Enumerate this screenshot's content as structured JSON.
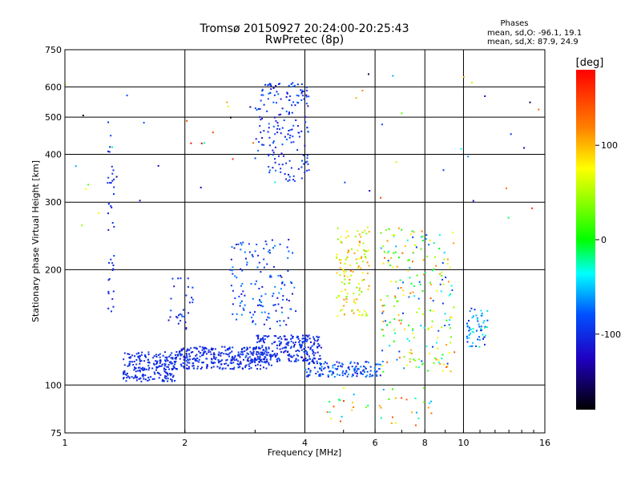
{
  "chart_data": {
    "type": "scatter",
    "title": "Tromsø 20150927 20:24:00-20:25:43",
    "subtitle": "RwPretec (8p)",
    "xlabel": "Frequency [MHz]",
    "ylabel": "Stationary phase Virtual Height [km]",
    "x_scale": "log",
    "y_scale": "log",
    "xlim": [
      1,
      16
    ],
    "ylim": [
      75,
      750
    ],
    "x_ticks": [
      "1",
      "2",
      "4",
      "6",
      "8",
      "10",
      "16"
    ],
    "y_ticks": [
      "75",
      "100",
      "200",
      "300",
      "400",
      "500",
      "600",
      "750"
    ],
    "grid": true,
    "phases": {
      "title": "Phases",
      "line_o": "mean, sd,O: -96.1, 19.1",
      "line_x": "mean, sd,X:  87.9, 24.9"
    },
    "colorbar": {
      "label": "[deg]",
      "ticks": [
        "100",
        "0",
        "-100"
      ],
      "tick_values": [
        100,
        0,
        -100
      ],
      "range": [
        -180,
        180
      ]
    },
    "clusters": [
      {
        "x": [
          1.4,
          1.9
        ],
        "y": [
          102,
          122
        ],
        "phase": [
          -110,
          -90
        ],
        "n": 220
      },
      {
        "x": [
          1.9,
          3.3
        ],
        "y": [
          110,
          126
        ],
        "phase": [
          -115,
          -85
        ],
        "n": 320
      },
      {
        "x": [
          3.0,
          4.4
        ],
        "y": [
          115,
          135
        ],
        "phase": [
          -120,
          -80
        ],
        "n": 240
      },
      {
        "x": [
          3.0,
          4.1
        ],
        "y": [
          340,
          620
        ],
        "phase": [
          -120,
          -70
        ],
        "n": 180
      },
      {
        "x": [
          2.6,
          3.8
        ],
        "y": [
          140,
          240
        ],
        "phase": [
          -120,
          -60
        ],
        "n": 140
      },
      {
        "x": [
          1.28,
          1.33
        ],
        "y": [
          150,
          500
        ],
        "phase": [
          -115,
          -90
        ],
        "n": 40
      },
      {
        "x": [
          1.8,
          2.1
        ],
        "y": [
          140,
          190
        ],
        "phase": [
          -115,
          -80
        ],
        "n": 30
      },
      {
        "x": [
          4.0,
          6.2
        ],
        "y": [
          105,
          115
        ],
        "phase": [
          -115,
          -60
        ],
        "n": 140
      },
      {
        "x": [
          4.8,
          5.8
        ],
        "y": [
          150,
          260
        ],
        "phase": [
          30,
          120
        ],
        "n": 120
      },
      {
        "x": [
          6.2,
          9.5
        ],
        "y": [
          108,
          260
        ],
        "phase": [
          -100,
          140
        ],
        "n": 220
      },
      {
        "x": [
          10.2,
          11.5
        ],
        "y": [
          125,
          160
        ],
        "phase": [
          -110,
          -20
        ],
        "n": 60
      },
      {
        "x": [
          4.5,
          8.5
        ],
        "y": [
          78,
          100
        ],
        "phase": [
          -60,
          160
        ],
        "n": 40
      },
      {
        "x": [
          1.0,
          15.5
        ],
        "y": [
          260,
          650
        ],
        "phase": [
          -180,
          180
        ],
        "n": 50
      }
    ]
  }
}
